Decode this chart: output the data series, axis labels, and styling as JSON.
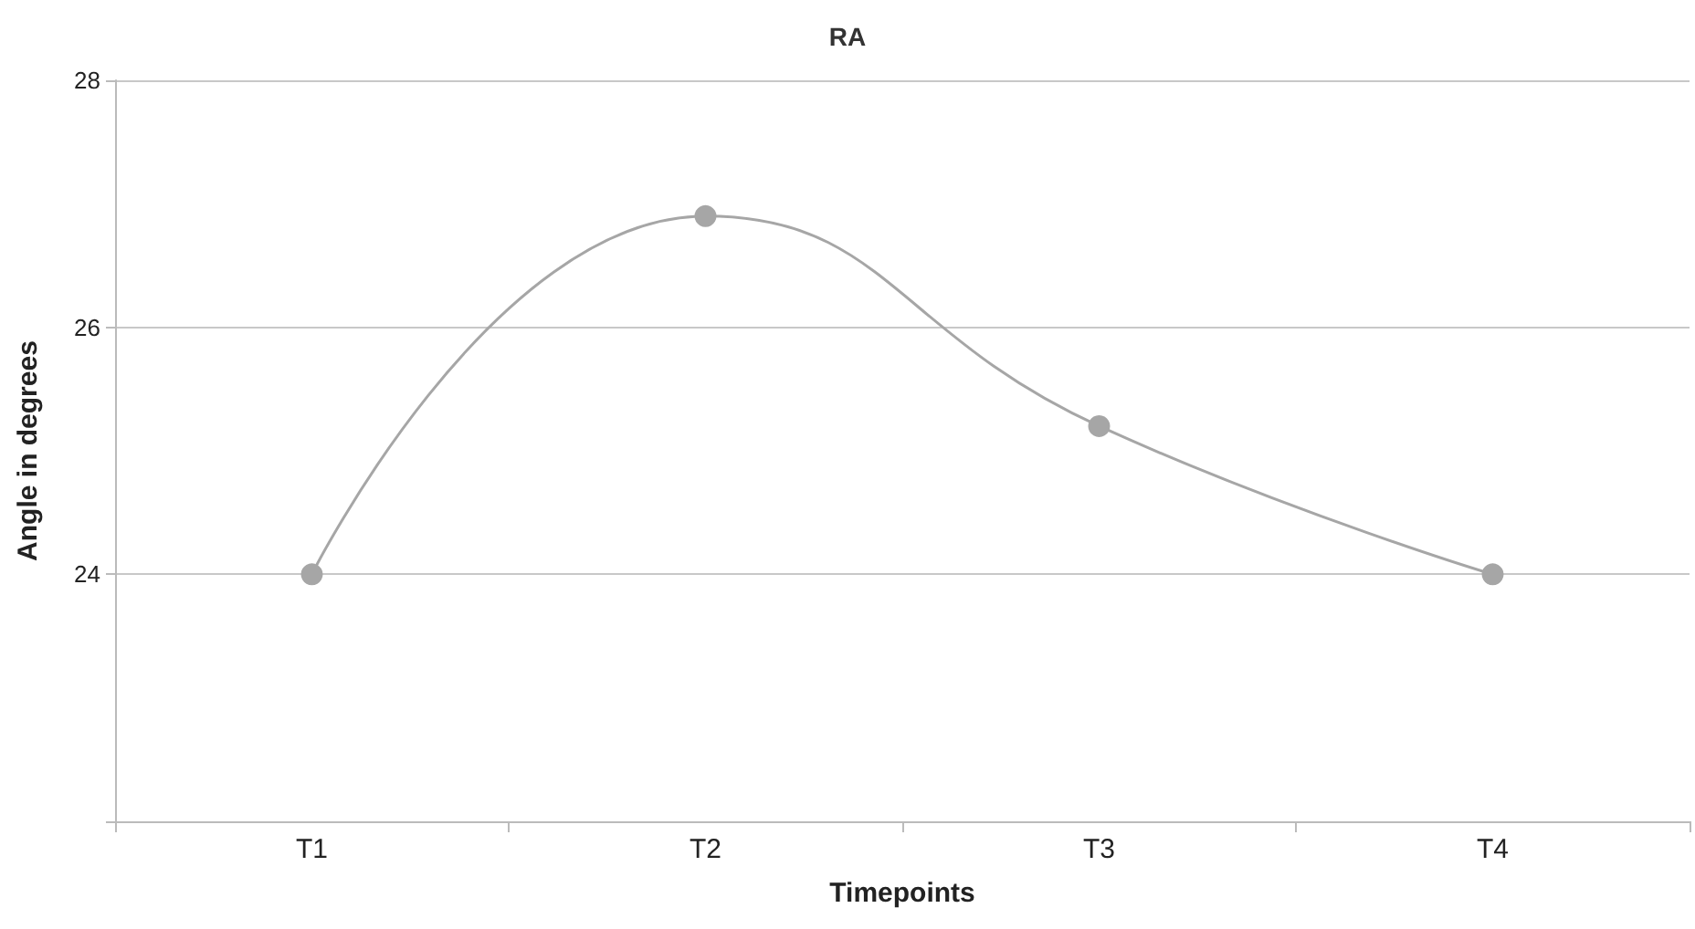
{
  "chart_data": {
    "type": "line",
    "title": "RA",
    "xlabel": "Timepoints",
    "ylabel": "Angle in degrees",
    "categories": [
      "T1",
      "T2",
      "T3",
      "T4"
    ],
    "series": [
      {
        "color": "#a6a6a6",
        "values": [
          24.0,
          26.9,
          25.2,
          24.0
        ]
      }
    ],
    "ylim": [
      22,
      28
    ],
    "yticks": [
      {
        "value": 22,
        "label": null
      },
      24,
      26,
      28
    ],
    "grid": "y",
    "marker": "circle"
  }
}
